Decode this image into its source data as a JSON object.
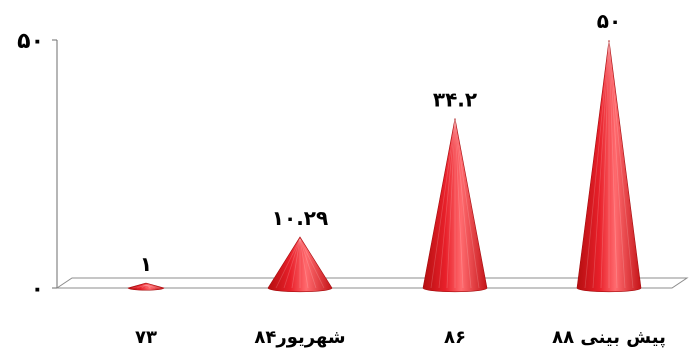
{
  "chart_data": {
    "type": "bar",
    "shape": "cone",
    "title": "",
    "xlabel": "",
    "ylabel": "",
    "categories": [
      "۷۳",
      "شهریور۸۴",
      "۸۶",
      "پیش بینی ۸۸"
    ],
    "values": [
      1,
      10.29,
      34.2,
      50
    ],
    "data_labels": [
      "۱",
      "۱۰.۲۹",
      "۳۴.۲",
      "۵۰"
    ],
    "ylim": [
      0,
      50
    ],
    "y_ticks": [
      {
        "value": 0,
        "label": "۰"
      },
      {
        "value": 50,
        "label": "۵۰"
      }
    ],
    "grid": false,
    "legend": "none",
    "colors": {
      "cone_dark": "#b50e10",
      "cone_mid": "#e8202a",
      "cone_light": "#ff6a6e",
      "floor_line": "#8c8c8c",
      "axis_line": "#6e6e6e"
    }
  }
}
